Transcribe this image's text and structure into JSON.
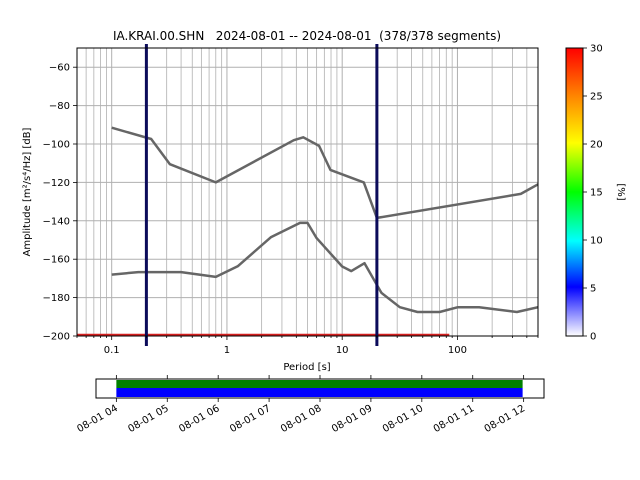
{
  "chart_data": [
    {
      "type": "line",
      "title": "IA.KRAI.00.SHN   2024-08-01 -- 2024-08-01  (378/378 segments)",
      "xlabel": "Period [s]",
      "ylabel": "Amplitude [m²/s⁴/Hz] [dB]",
      "x_scale": "log",
      "xlim": [
        0.05,
        500
      ],
      "ylim": [
        -200,
        -50
      ],
      "x_ticks": [
        {
          "value": 0.1,
          "label": "0.1"
        },
        {
          "value": 1,
          "label": "1"
        },
        {
          "value": 10,
          "label": "10"
        },
        {
          "value": 100,
          "label": "100"
        }
      ],
      "y_ticks": [
        {
          "value": -60,
          "label": "−60"
        },
        {
          "value": -80,
          "label": "−80"
        },
        {
          "value": -100,
          "label": "−100"
        },
        {
          "value": -120,
          "label": "−120"
        },
        {
          "value": -140,
          "label": "−140"
        },
        {
          "value": -160,
          "label": "−160"
        },
        {
          "value": -180,
          "label": "−180"
        },
        {
          "value": -200,
          "label": "−200"
        }
      ],
      "grid": true,
      "series": [
        {
          "role": "high-noise-model",
          "color": "#666666",
          "points": [
            [
              0.1,
              -91.5
            ],
            [
              0.22,
              -97.4
            ],
            [
              0.32,
              -110.5
            ],
            [
              0.8,
              -120
            ],
            [
              3.8,
              -98
            ],
            [
              4.6,
              -96.5
            ],
            [
              6.3,
              -101
            ],
            [
              7.9,
              -113.5
            ],
            [
              15.4,
              -120
            ],
            [
              20,
              -138.5
            ],
            [
              354.8,
              -126
            ],
            [
              500,
              -121
            ]
          ]
        },
        {
          "role": "low-noise-model",
          "color": "#666666",
          "points": [
            [
              0.1,
              -168
            ],
            [
              0.17,
              -166.7
            ],
            [
              0.4,
              -166.7
            ],
            [
              0.8,
              -169.2
            ],
            [
              1.24,
              -163.7
            ],
            [
              2.4,
              -148.6
            ],
            [
              4.3,
              -141.1
            ],
            [
              5,
              -141.1
            ],
            [
              6,
              -149
            ],
            [
              10,
              -163.8
            ],
            [
              12,
              -166.2
            ],
            [
              15.6,
              -162.1
            ],
            [
              21.9,
              -177.5
            ],
            [
              31.6,
              -185
            ],
            [
              45,
              -187.5
            ],
            [
              70,
              -187.5
            ],
            [
              101,
              -185
            ],
            [
              154,
              -185
            ],
            [
              328,
              -187.5
            ],
            [
              500,
              -185
            ]
          ]
        },
        {
          "role": "ppsd-data-trace",
          "color": "#d42020",
          "points": [
            [
              0.05,
              -199.5
            ],
            [
              85,
              -199.5
            ]
          ]
        }
      ],
      "vertical_lines": [
        {
          "x": 0.2,
          "color": "#0b0b5a"
        },
        {
          "x": 20,
          "color": "#0b0b5a"
        }
      ]
    },
    {
      "type": "colorbar",
      "label": "[%]",
      "range": [
        0,
        30
      ],
      "ticks": [
        {
          "value": 0,
          "label": "0"
        },
        {
          "value": 5,
          "label": "5"
        },
        {
          "value": 10,
          "label": "10"
        },
        {
          "value": 15,
          "label": "15"
        },
        {
          "value": 20,
          "label": "20"
        },
        {
          "value": 25,
          "label": "25"
        },
        {
          "value": 30,
          "label": "30"
        }
      ],
      "colors": [
        {
          "stop": 0,
          "color": "#ffffff"
        },
        {
          "stop": 0.17,
          "color": "#0000ff"
        },
        {
          "stop": 0.33,
          "color": "#00ffff"
        },
        {
          "stop": 0.5,
          "color": "#00ff00"
        },
        {
          "stop": 0.67,
          "color": "#ffff00"
        },
        {
          "stop": 0.83,
          "color": "#ff8800"
        },
        {
          "stop": 1,
          "color": "#ff0000"
        }
      ]
    },
    {
      "type": "timeline",
      "range_hours": [
        3.6,
        12.4
      ],
      "ticks": [
        {
          "value": 4,
          "label": "08-01 04"
        },
        {
          "value": 5,
          "label": "08-01 05"
        },
        {
          "value": 6,
          "label": "08-01 06"
        },
        {
          "value": 7,
          "label": "08-01 07"
        },
        {
          "value": 8,
          "label": "08-01 08"
        },
        {
          "value": 9,
          "label": "08-01 09"
        },
        {
          "value": 10,
          "label": "08-01 10"
        },
        {
          "value": 11,
          "label": "08-01 11"
        },
        {
          "value": 12,
          "label": "08-01 12"
        }
      ],
      "bars": [
        {
          "role": "coverage-green",
          "start": 4,
          "end": 11.98,
          "color": "#008000"
        },
        {
          "role": "coverage-blue",
          "start": 4,
          "end": 11.98,
          "color": "#0000ff"
        }
      ]
    }
  ]
}
